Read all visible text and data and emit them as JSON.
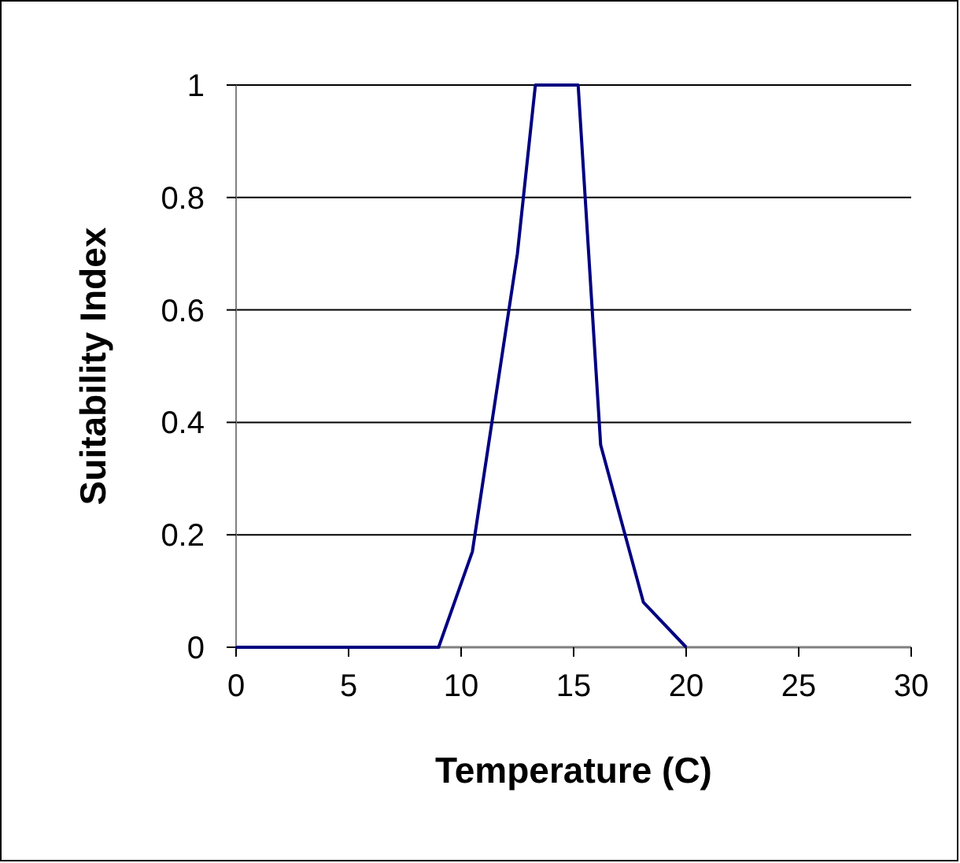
{
  "chart_data": {
    "type": "line",
    "xlabel": "Temperature (C)",
    "ylabel": "Suitability Index",
    "x": [
      0,
      9,
      10.5,
      12.5,
      13.3,
      15.2,
      16.2,
      18.1,
      20
    ],
    "series": [
      {
        "color": "#000080",
        "values": [
          0,
          0,
          0.17,
          0.7,
          1,
          1,
          0.36,
          0.08,
          0
        ]
      }
    ],
    "xlim": [
      0,
      30
    ],
    "xticks": [
      0,
      5,
      10,
      15,
      20,
      25,
      30
    ],
    "ylim": [
      0,
      1
    ],
    "yticks": [
      0,
      0.2,
      0.4,
      0.6,
      0.8,
      1
    ],
    "grid": "y",
    "marker": "none",
    "line_style": "solid"
  }
}
